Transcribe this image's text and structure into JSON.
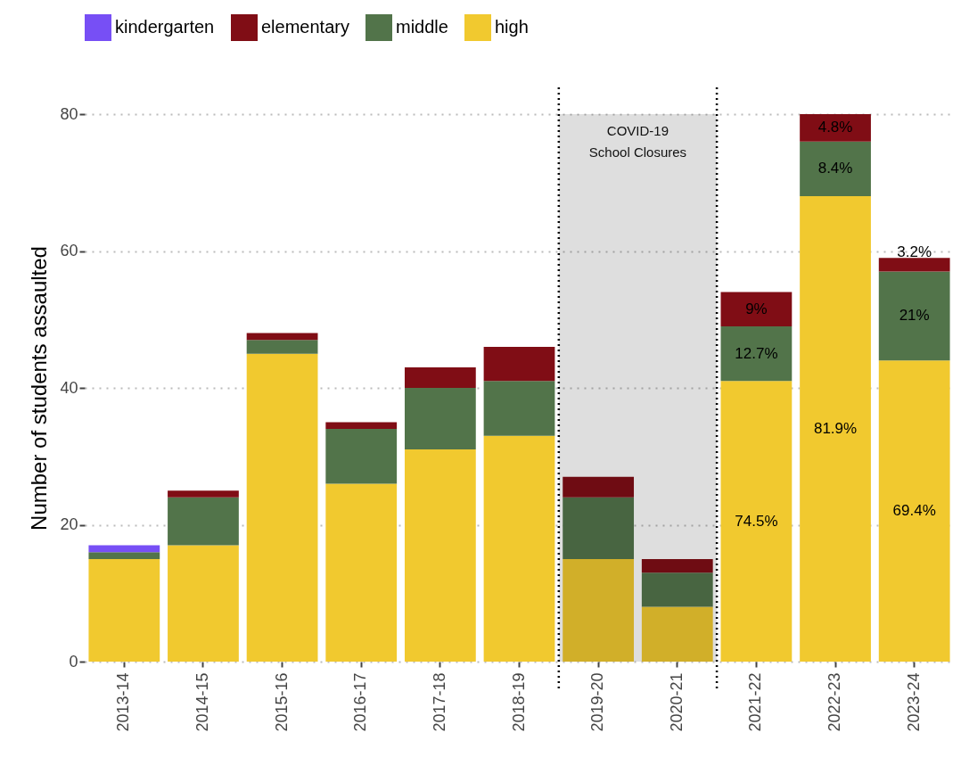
{
  "chart_data": {
    "type": "bar",
    "stacked": true,
    "ylabel": "Number of students assaulted",
    "categories": [
      "2013-14",
      "2014-15",
      "2015-16",
      "2016-17",
      "2017-18",
      "2018-19",
      "2019-20",
      "2020-21",
      "2021-22",
      "2022-23",
      "2023-24"
    ],
    "series": [
      {
        "name": "high",
        "color": "#f1c92f",
        "values": [
          15,
          17,
          45,
          26,
          31,
          33,
          15,
          8,
          41,
          68,
          44
        ]
      },
      {
        "name": "middle",
        "color": "#52744a",
        "values": [
          1,
          7,
          2,
          8,
          9,
          8,
          9,
          5,
          8,
          8,
          13
        ]
      },
      {
        "name": "elementary",
        "color": "#800d15",
        "values": [
          0,
          1,
          1,
          1,
          3,
          5,
          3,
          2,
          5,
          4,
          2
        ]
      },
      {
        "name": "kindergarten",
        "color": "#774ff5",
        "values": [
          1,
          0,
          0,
          0,
          0,
          0,
          0,
          0,
          0,
          0,
          0
        ]
      }
    ],
    "annotations": [
      "74.5%",
      "81.9%",
      "69.4%",
      "12.7%",
      "8.4%",
      "21%",
      "9%",
      "4.8%",
      "3.2%"
    ],
    "ylim": [
      0,
      80
    ],
    "yticks": [
      0,
      20,
      40,
      60,
      80
    ],
    "grid": "y",
    "legend": "top",
    "bands": [
      {
        "axis": "x",
        "from": "2019-20",
        "to": "2020-21",
        "label": "COVID-19\nSchool Closures",
        "color": "#dedede"
      }
    ]
  }
}
